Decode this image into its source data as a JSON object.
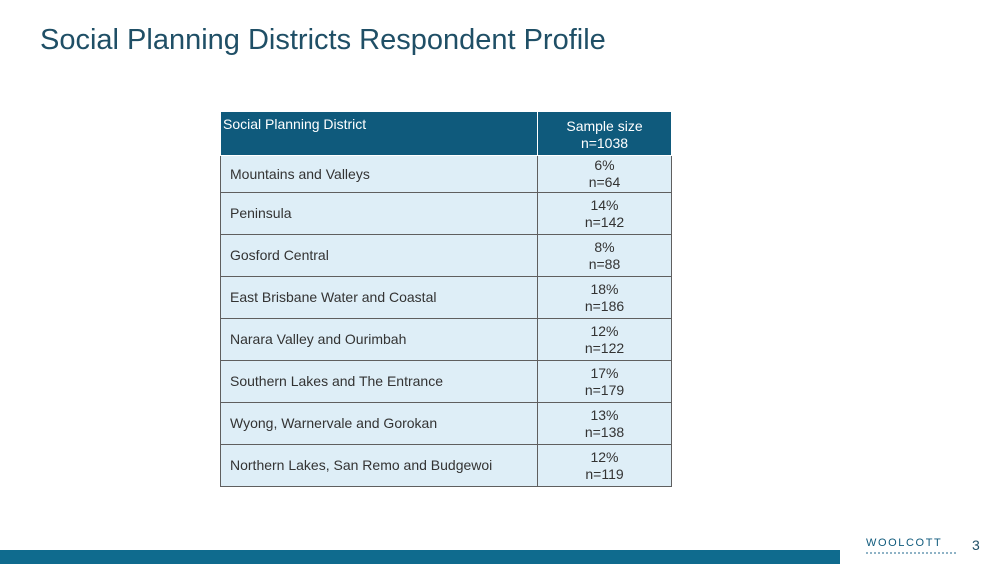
{
  "title": "Social Planning Districts Respondent Profile",
  "table": {
    "header": {
      "district": "Social Planning District",
      "sample_line1": "Sample size",
      "sample_line2": "n=1038"
    },
    "rows": [
      {
        "district": "Mountains and Valleys",
        "percent": "6%",
        "n": "n=64"
      },
      {
        "district": "Peninsula",
        "percent": "14%",
        "n": "n=142"
      },
      {
        "district": "Gosford Central",
        "percent": "8%",
        "n": "n=88"
      },
      {
        "district": "East Brisbane Water and Coastal",
        "percent": "18%",
        "n": "n=186"
      },
      {
        "district": "Narara Valley and Ourimbah",
        "percent": "12%",
        "n": "n=122"
      },
      {
        "district": "Southern Lakes and The Entrance",
        "percent": "17%",
        "n": "n=179"
      },
      {
        "district": "Wyong, Warnervale and Gorokan",
        "percent": "13%",
        "n": "n=138"
      },
      {
        "district": "Northern Lakes, San Remo and Budgewoi",
        "percent": "12%",
        "n": "n=119"
      }
    ]
  },
  "footer": {
    "logo_text": "WOOLCOTT",
    "page_number": "3",
    "accent_color": "#0f6b8e"
  }
}
